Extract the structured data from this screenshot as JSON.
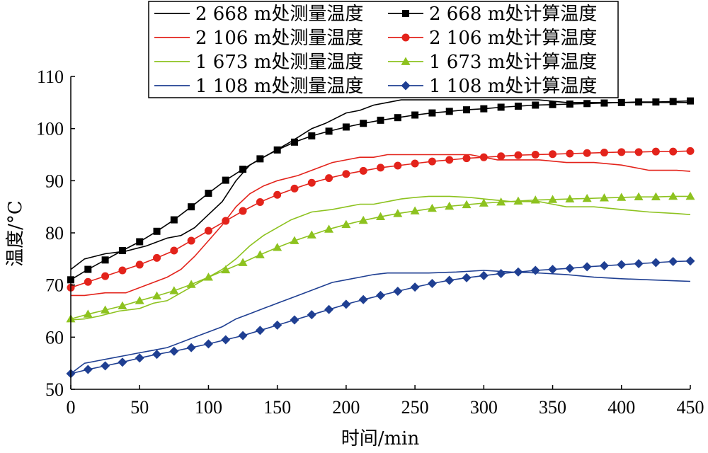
{
  "chart_data": {
    "type": "line",
    "xlabel": "时间/min",
    "ylabel": "温度/°C",
    "xlim": [
      0,
      450
    ],
    "ylim": [
      50,
      110
    ],
    "xticks": [
      0,
      50,
      100,
      150,
      200,
      250,
      300,
      350,
      400,
      450
    ],
    "yticks": [
      50,
      60,
      70,
      80,
      90,
      100,
      110
    ],
    "grid": false,
    "legend_position": "top",
    "series": [
      {
        "name": "2 668 m处测量温度",
        "color": "#000000",
        "marker": "none",
        "x": [
          0,
          10,
          25,
          40,
          55,
          70,
          80,
          90,
          100,
          110,
          120,
          130,
          140,
          150,
          160,
          175,
          185,
          200,
          210,
          220,
          230,
          240,
          250,
          260,
          280,
          300,
          320,
          340,
          360,
          380,
          400,
          420,
          440,
          450
        ],
        "y": [
          73,
          75,
          76,
          76.5,
          77.5,
          79,
          79.5,
          81,
          83.5,
          86,
          90,
          93,
          94.5,
          96,
          97.5,
          100,
          101,
          103,
          103.5,
          104.5,
          105,
          105.5,
          105.5,
          105.5,
          105.5,
          105.5,
          105.5,
          105.5,
          105,
          105,
          105,
          105,
          105,
          105
        ]
      },
      {
        "name": "2 668 m处计算温度",
        "color": "#000000",
        "marker": "square",
        "x": [
          0,
          12.5,
          25,
          37.5,
          50,
          62.5,
          75,
          87.5,
          100,
          112.5,
          125,
          137.5,
          150,
          162.5,
          175,
          187.5,
          200,
          212.5,
          225,
          237.5,
          250,
          262.5,
          275,
          287.5,
          300,
          312.5,
          325,
          337.5,
          350,
          362.5,
          375,
          387.5,
          400,
          412.5,
          425,
          437.5,
          450
        ],
        "y": [
          71,
          73,
          74.8,
          76.6,
          78.3,
          80.3,
          82.5,
          85,
          87.6,
          90.1,
          92.2,
          94.2,
          95.9,
          97.4,
          98.6,
          99.5,
          100.3,
          101,
          101.6,
          102.1,
          102.6,
          103,
          103.3,
          103.6,
          103.8,
          104.1,
          104.3,
          104.5,
          104.6,
          104.7,
          104.8,
          104.9,
          105,
          105.1,
          105.1,
          105.2,
          105.3
        ]
      },
      {
        "name": "2 106 m处测量温度",
        "color": "#e3231b",
        "marker": "none",
        "x": [
          0,
          10,
          25,
          40,
          50,
          60,
          70,
          80,
          90,
          100,
          110,
          120,
          130,
          140,
          150,
          165,
          175,
          190,
          200,
          210,
          220,
          230,
          240,
          250,
          260,
          275,
          290,
          300,
          310,
          320,
          340,
          360,
          380,
          400,
          420,
          440,
          450
        ],
        "y": [
          68,
          68,
          68.5,
          68.5,
          69.5,
          70.5,
          71.5,
          73,
          75.5,
          78.5,
          81.5,
          85,
          87.5,
          89,
          90,
          91,
          92,
          93.5,
          94,
          94.5,
          94.5,
          95,
          95,
          95,
          95,
          95,
          95,
          94.5,
          94,
          94,
          94,
          93.5,
          93.5,
          93,
          92,
          92,
          91.8
        ]
      },
      {
        "name": "2 106 m处计算温度",
        "color": "#e3231b",
        "marker": "circle",
        "x": [
          0,
          12.5,
          25,
          37.5,
          50,
          62.5,
          75,
          87.5,
          100,
          112.5,
          125,
          137.5,
          150,
          162.5,
          175,
          187.5,
          200,
          212.5,
          225,
          237.5,
          250,
          262.5,
          275,
          287.5,
          300,
          312.5,
          325,
          337.5,
          350,
          362.5,
          375,
          387.5,
          400,
          412.5,
          425,
          437.5,
          450
        ],
        "y": [
          69.5,
          70.6,
          71.7,
          72.8,
          73.9,
          75.2,
          76.6,
          78.5,
          80.4,
          82.3,
          84.2,
          85.9,
          87.3,
          88.5,
          89.6,
          90.5,
          91.3,
          91.9,
          92.5,
          92.9,
          93.3,
          93.7,
          94,
          94.3,
          94.5,
          94.7,
          94.9,
          95,
          95.1,
          95.2,
          95.3,
          95.4,
          95.5,
          95.5,
          95.6,
          95.6,
          95.7
        ]
      },
      {
        "name": "1 673 m处测量温度",
        "color": "#8dc21f",
        "marker": "none",
        "x": [
          0,
          10,
          20,
          35,
          50,
          60,
          70,
          80,
          90,
          100,
          110,
          120,
          130,
          140,
          150,
          160,
          175,
          190,
          200,
          210,
          220,
          230,
          240,
          250,
          260,
          275,
          290,
          300,
          320,
          340,
          350,
          360,
          380,
          400,
          420,
          440,
          450
        ],
        "y": [
          63.3,
          63.5,
          64,
          65,
          65.5,
          66.5,
          67,
          68.5,
          70,
          71.5,
          73,
          75,
          77.5,
          79.5,
          81,
          82.5,
          84,
          84.5,
          85,
          85.5,
          85.5,
          86,
          86.5,
          86.8,
          87,
          87,
          86.8,
          86.5,
          86,
          86,
          85.5,
          85,
          85,
          84.5,
          84,
          83.7,
          83.5
        ]
      },
      {
        "name": "1 673 m处计算温度",
        "color": "#8dc21f",
        "marker": "triangle",
        "x": [
          0,
          12.5,
          25,
          37.5,
          50,
          62.5,
          75,
          87.5,
          100,
          112.5,
          125,
          137.5,
          150,
          162.5,
          175,
          187.5,
          200,
          212.5,
          225,
          237.5,
          250,
          262.5,
          275,
          287.5,
          300,
          312.5,
          325,
          337.5,
          350,
          362.5,
          375,
          387.5,
          400,
          412.5,
          425,
          437.5,
          450
        ],
        "y": [
          63.5,
          64.4,
          65.2,
          66,
          67,
          67.9,
          68.9,
          70.1,
          71.5,
          72.9,
          74.3,
          75.8,
          77.2,
          78.5,
          79.6,
          80.7,
          81.6,
          82.4,
          83.1,
          83.7,
          84.2,
          84.7,
          85.1,
          85.4,
          85.7,
          85.9,
          86.1,
          86.3,
          86.4,
          86.5,
          86.6,
          86.7,
          86.8,
          86.9,
          86.9,
          87,
          87
        ]
      },
      {
        "name": "1 108 m处测量温度",
        "color": "#1f3f92",
        "marker": "none",
        "x": [
          0,
          10,
          20,
          30,
          40,
          50,
          60,
          70,
          80,
          90,
          100,
          110,
          120,
          130,
          140,
          150,
          160,
          170,
          180,
          190,
          200,
          210,
          220,
          230,
          240,
          250,
          260,
          280,
          300,
          320,
          340,
          360,
          380,
          400,
          420,
          440,
          450
        ],
        "y": [
          53,
          55,
          55.5,
          56,
          56.5,
          57,
          57.5,
          58,
          59,
          60,
          61,
          62,
          63.5,
          64.5,
          65.5,
          66.5,
          67.5,
          68.5,
          69.5,
          70.5,
          71,
          71.5,
          72,
          72.3,
          72.3,
          72.3,
          72.3,
          72.5,
          72.8,
          72.5,
          72.3,
          72,
          71.5,
          71.2,
          71,
          70.8,
          70.7
        ]
      },
      {
        "name": "1 108 m处计算温度",
        "color": "#1f3f92",
        "marker": "diamond",
        "x": [
          0,
          12.5,
          25,
          37.5,
          50,
          62.5,
          75,
          87.5,
          100,
          112.5,
          125,
          137.5,
          150,
          162.5,
          175,
          187.5,
          200,
          212.5,
          225,
          237.5,
          250,
          262.5,
          275,
          287.5,
          300,
          312.5,
          325,
          337.5,
          350,
          362.5,
          375,
          387.5,
          400,
          412.5,
          425,
          437.5,
          450
        ],
        "y": [
          53,
          53.8,
          54.5,
          55.2,
          56,
          56.7,
          57.3,
          58,
          58.7,
          59.5,
          60.3,
          61.3,
          62.3,
          63.3,
          64.3,
          65.3,
          66.3,
          67.2,
          68,
          68.8,
          69.6,
          70.3,
          70.9,
          71.4,
          71.8,
          72.2,
          72.5,
          72.8,
          73,
          73.2,
          73.5,
          73.7,
          73.9,
          74.1,
          74.3,
          74.5,
          74.6
        ]
      }
    ]
  }
}
